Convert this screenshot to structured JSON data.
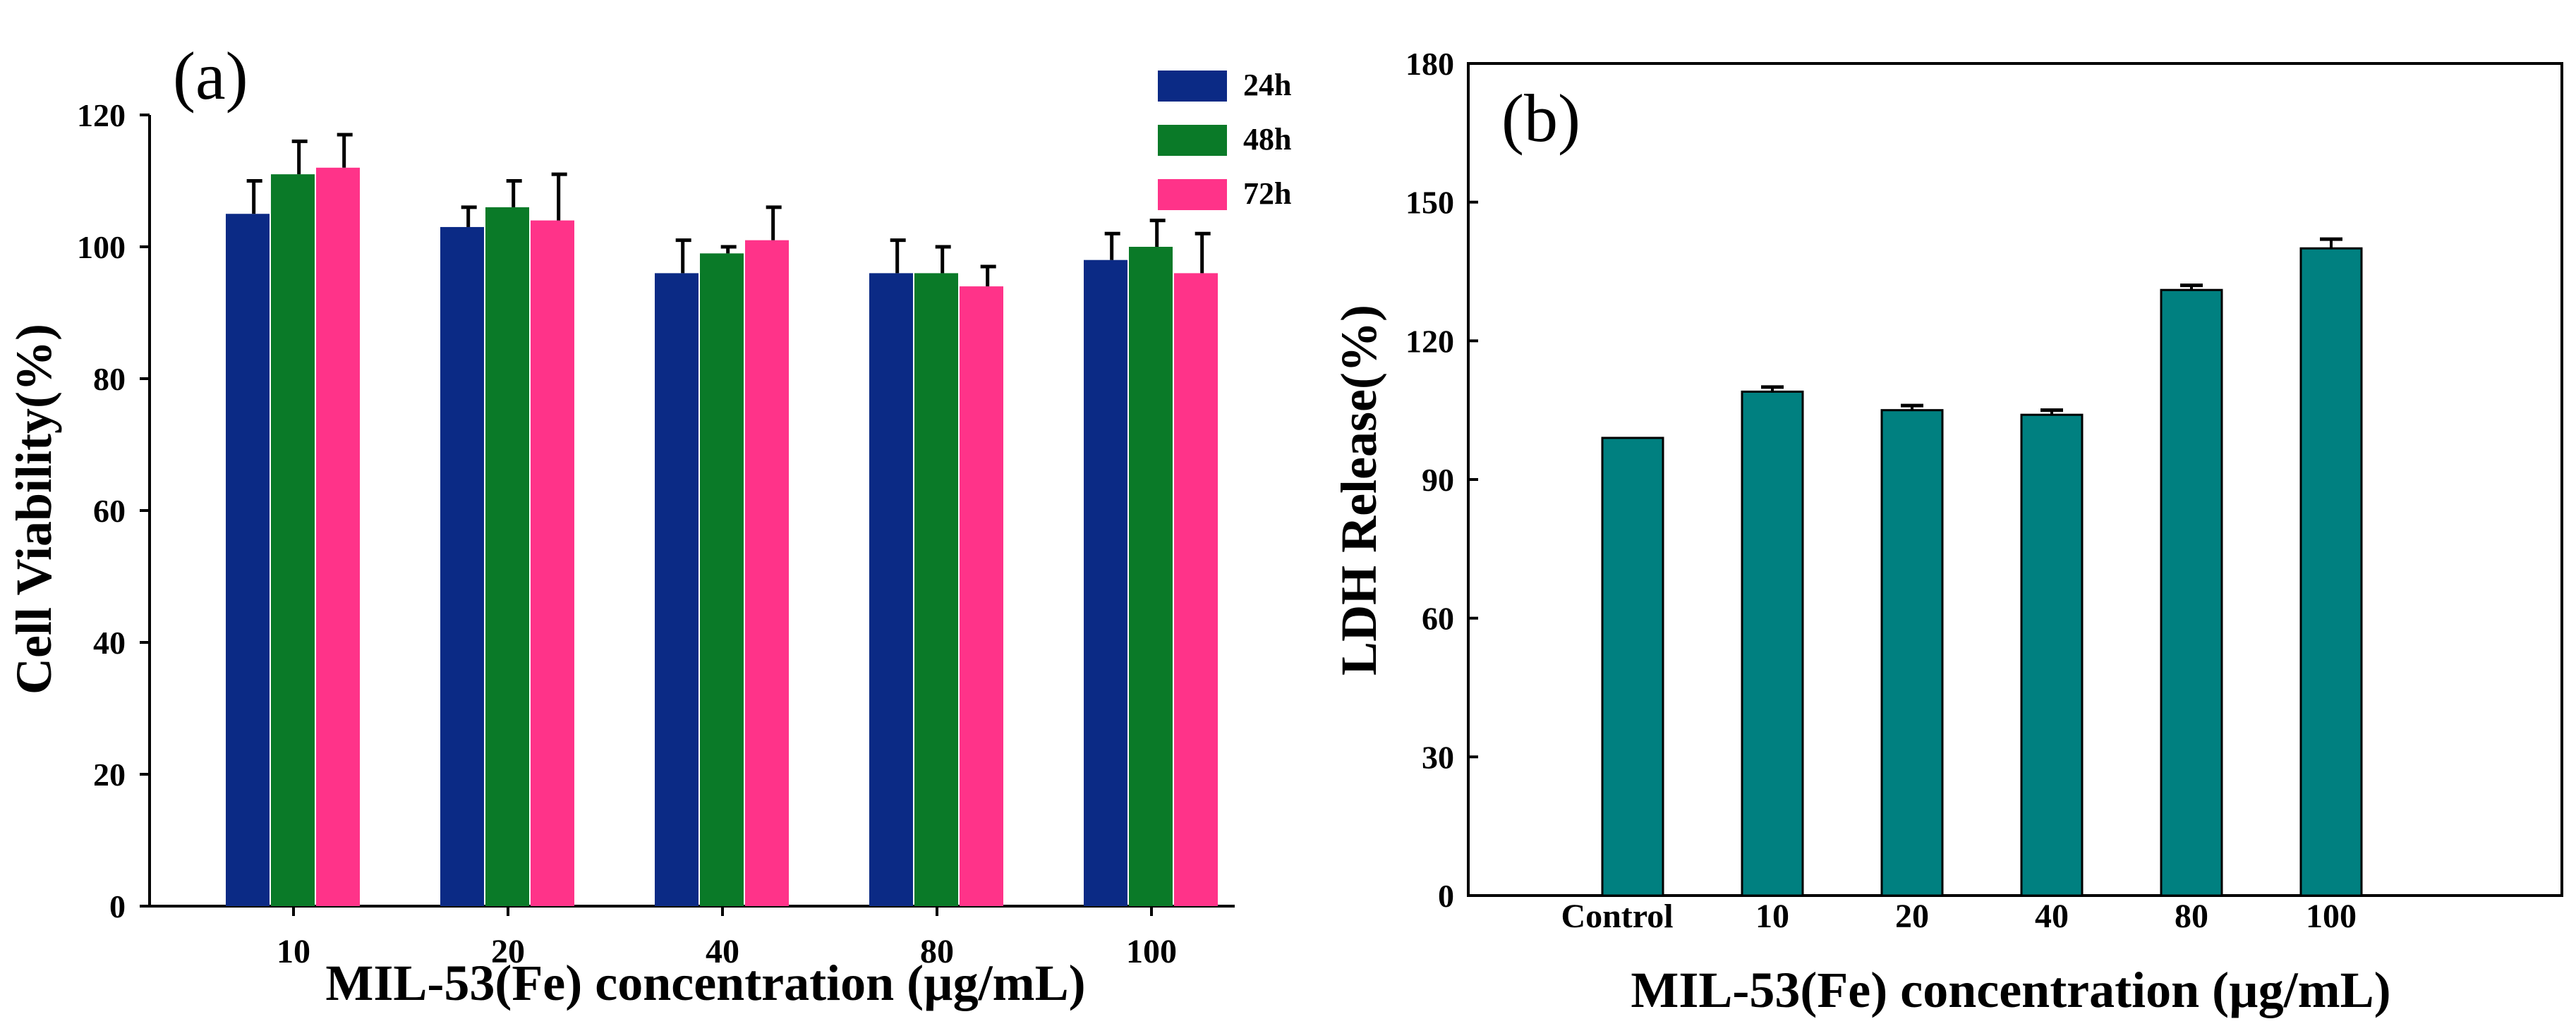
{
  "chart_data": [
    {
      "type": "bar",
      "panel_label": "(a)",
      "categories": [
        "10",
        "20",
        "40",
        "80",
        "100"
      ],
      "series": [
        {
          "name": "24h",
          "color": "#0b2a85",
          "values": [
            105,
            103,
            96,
            96,
            98
          ],
          "errors": [
            5,
            3,
            5,
            5,
            4
          ]
        },
        {
          "name": "48h",
          "color": "#0a7a28",
          "values": [
            111,
            106,
            99,
            96,
            100
          ],
          "errors": [
            5,
            4,
            1,
            4,
            4
          ]
        },
        {
          "name": "72h",
          "color": "#ff3389",
          "values": [
            112,
            104,
            101,
            94,
            96
          ],
          "errors": [
            5,
            7,
            5,
            3,
            6
          ]
        }
      ],
      "xlabel": "MIL-53(Fe) concentration (µg/mL)",
      "ylabel": "Cell Viability(%)",
      "ylim": [
        0,
        120
      ],
      "yticks": [
        "0",
        "20",
        "40",
        "60",
        "80",
        "100",
        "120"
      ],
      "legend": "top-right",
      "grid": false
    },
    {
      "type": "bar",
      "panel_label": "(b)",
      "categories": [
        "Control",
        "10",
        "20",
        "40",
        "80",
        "100"
      ],
      "series": [
        {
          "name": "LDH Release",
          "color": "#008080",
          "values": [
            99,
            109,
            105,
            104,
            131,
            140
          ],
          "errors": [
            0,
            1,
            1,
            1,
            1,
            2
          ]
        }
      ],
      "xlabel": "MIL-53(Fe) concentration (µg/mL)",
      "ylabel": "LDH Release(%)",
      "ylim": [
        0,
        180
      ],
      "yticks": [
        "0",
        "30",
        "60",
        "90",
        "120",
        "150",
        "180"
      ],
      "grid": false
    }
  ]
}
